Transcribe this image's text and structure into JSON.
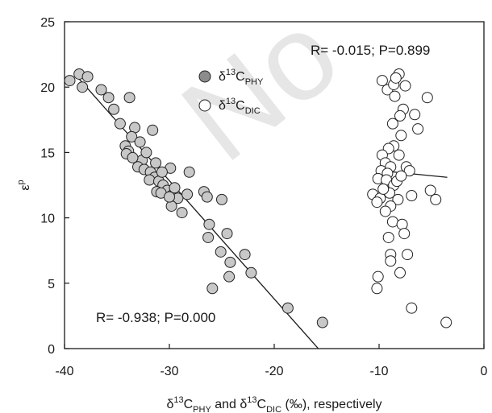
{
  "chart_data": {
    "type": "scatter",
    "watermark": "No",
    "xlim": [
      -40,
      0
    ],
    "ylim": [
      0,
      25
    ],
    "xticks": [
      -40,
      -30,
      -20,
      -10,
      0
    ],
    "yticks": [
      0,
      5,
      10,
      15,
      20,
      25
    ],
    "xlabel_parts": [
      "δ",
      "13",
      "C",
      "PHY",
      " and δ",
      "13",
      "C",
      "DIC",
      " (‰), respectively"
    ],
    "ylabel_parts": [
      "ε",
      "p"
    ],
    "legend": [
      {
        "parts": [
          "δ",
          "13",
          "C",
          "PHY"
        ],
        "fill": "#8c8c8c"
      },
      {
        "parts": [
          "δ",
          "13",
          "C",
          "DIC"
        ],
        "fill": "#ffffff"
      }
    ],
    "annotations": [
      {
        "text": "R= -0.015; P=0.899",
        "pos": "top-right"
      },
      {
        "text": "R= -0.938; P=0.000",
        "pos": "bottom-left"
      }
    ],
    "series": [
      {
        "name": "δ13C PHY",
        "fill": "#c8c8c8",
        "trend": [
          [
            -38.8,
            20.8
          ],
          [
            -15.8,
            0
          ]
        ],
        "points": [
          [
            -39.5,
            20.5
          ],
          [
            -38.6,
            21.0
          ],
          [
            -38.3,
            20.0
          ],
          [
            -37.8,
            20.8
          ],
          [
            -36.5,
            19.8
          ],
          [
            -35.8,
            19.2
          ],
          [
            -35.3,
            18.3
          ],
          [
            -33.8,
            19.2
          ],
          [
            -34.7,
            17.2
          ],
          [
            -33.3,
            16.9
          ],
          [
            -33.6,
            16.2
          ],
          [
            -32.8,
            15.8
          ],
          [
            -34.2,
            15.5
          ],
          [
            -33.9,
            15.1
          ],
          [
            -34.1,
            14.9
          ],
          [
            -32.6,
            14.4
          ],
          [
            -33.0,
            13.9
          ],
          [
            -32.4,
            13.7
          ],
          [
            -31.8,
            13.5
          ],
          [
            -31.4,
            13.1
          ],
          [
            -31.9,
            12.9
          ],
          [
            -31.0,
            12.8
          ],
          [
            -30.6,
            12.5
          ],
          [
            -30.2,
            12.1
          ],
          [
            -31.2,
            12.0
          ],
          [
            -30.8,
            11.9
          ],
          [
            -29.8,
            11.7
          ],
          [
            -29.2,
            11.5
          ],
          [
            -29.8,
            10.9
          ],
          [
            -28.8,
            10.4
          ],
          [
            -31.6,
            16.7
          ],
          [
            -29.9,
            13.8
          ],
          [
            -30.7,
            13.5
          ],
          [
            -28.3,
            11.8
          ],
          [
            -28.1,
            13.5
          ],
          [
            -26.7,
            12.0
          ],
          [
            -26.4,
            11.6
          ],
          [
            -25.0,
            11.4
          ],
          [
            -26.2,
            9.5
          ],
          [
            -25.1,
            7.4
          ],
          [
            -24.5,
            8.8
          ],
          [
            -26.3,
            8.5
          ],
          [
            -24.2,
            6.6
          ],
          [
            -22.8,
            7.2
          ],
          [
            -22.2,
            5.8
          ],
          [
            -24.3,
            5.5
          ],
          [
            -25.9,
            4.6
          ],
          [
            -18.7,
            3.1
          ],
          [
            -15.4,
            2.0
          ],
          [
            -32.2,
            15.0
          ],
          [
            -33.5,
            14.6
          ],
          [
            -31.3,
            14.2
          ],
          [
            -29.5,
            12.3
          ],
          [
            -30.0,
            11.6
          ]
        ]
      },
      {
        "name": "δ13C DIC",
        "fill": "#ffffff",
        "trend": [
          [
            -9.8,
            13.6
          ],
          [
            -3.5,
            13.1
          ]
        ],
        "points": [
          [
            -9.7,
            20.5
          ],
          [
            -9.2,
            19.8
          ],
          [
            -8.6,
            20.2
          ],
          [
            -8.1,
            21.0
          ],
          [
            -8.4,
            20.7
          ],
          [
            -7.5,
            20.1
          ],
          [
            -8.5,
            19.3
          ],
          [
            -5.4,
            19.2
          ],
          [
            -7.7,
            18.3
          ],
          [
            -8.0,
            17.8
          ],
          [
            -6.6,
            17.9
          ],
          [
            -8.7,
            17.2
          ],
          [
            -6.3,
            16.8
          ],
          [
            -7.9,
            16.3
          ],
          [
            -8.6,
            15.5
          ],
          [
            -9.1,
            15.3
          ],
          [
            -9.7,
            14.8
          ],
          [
            -8.1,
            14.8
          ],
          [
            -9.4,
            14.2
          ],
          [
            -8.9,
            13.9
          ],
          [
            -9.8,
            13.6
          ],
          [
            -9.2,
            13.4
          ],
          [
            -7.4,
            13.9
          ],
          [
            -7.1,
            13.6
          ],
          [
            -10.1,
            13.0
          ],
          [
            -9.3,
            12.9
          ],
          [
            -8.6,
            12.5
          ],
          [
            -5.1,
            12.1
          ],
          [
            -10.6,
            11.8
          ],
          [
            -9.9,
            11.5
          ],
          [
            -9.0,
            11.9
          ],
          [
            -8.2,
            11.4
          ],
          [
            -6.9,
            11.7
          ],
          [
            -4.6,
            11.4
          ],
          [
            -10.2,
            11.2
          ],
          [
            -8.9,
            10.9
          ],
          [
            -9.4,
            10.5
          ],
          [
            -8.7,
            9.7
          ],
          [
            -7.8,
            9.5
          ],
          [
            -9.1,
            8.5
          ],
          [
            -7.6,
            8.8
          ],
          [
            -8.9,
            7.2
          ],
          [
            -7.3,
            7.2
          ],
          [
            -8.9,
            6.7
          ],
          [
            -8.0,
            5.8
          ],
          [
            -10.1,
            5.5
          ],
          [
            -10.2,
            4.6
          ],
          [
            -6.9,
            3.1
          ],
          [
            -3.6,
            2.0
          ],
          [
            -8.3,
            12.8
          ],
          [
            -9.6,
            12.2
          ],
          [
            -7.9,
            13.2
          ]
        ]
      }
    ]
  }
}
